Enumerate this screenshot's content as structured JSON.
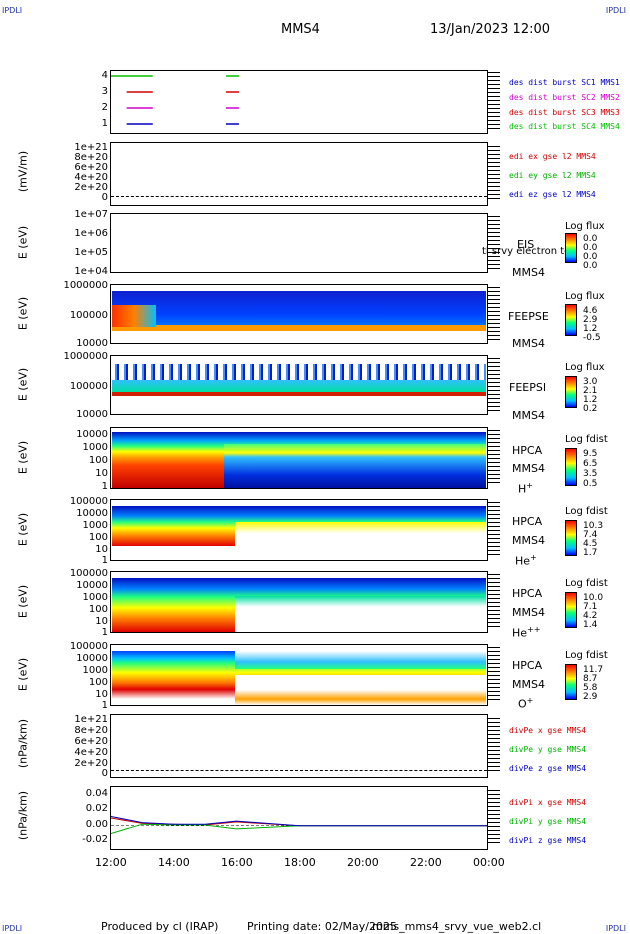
{
  "corners": {
    "label": "IPDLI"
  },
  "header": {
    "spacecraft": "MMS4",
    "datetime": "13/Jan/2023 12:00"
  },
  "panels": {
    "burst": {
      "yticks": [
        "4",
        "3",
        "2",
        "1"
      ],
      "legend": [
        {
          "text": "des dist burst SC1 MMS1",
          "color": "#0000c0"
        },
        {
          "text": "des dist burst SC2 MMS2",
          "color": "#d000d0"
        },
        {
          "text": "des dist burst SC3 MMS3",
          "color": "#d00000"
        },
        {
          "text": "des dist burst SC4 MMS4",
          "color": "#00c000"
        }
      ]
    },
    "edi": {
      "ylabel": "(mV/m)",
      "yticks": [
        "1e+21",
        "8e+20",
        "6e+20",
        "4e+20",
        "2e+20",
        "0"
      ],
      "legend": [
        {
          "text": "edi ex gse l2 MMS4",
          "color": "#d00000"
        },
        {
          "text": "edi ey gse l2 MMS4",
          "color": "#00b000"
        },
        {
          "text": "edi ez gse l2 MMS4",
          "color": "#0000c0"
        }
      ]
    },
    "eis": {
      "ylabel": "E (eV)",
      "yticks": [
        "1e+07",
        "1e+06",
        "1e+05",
        "1e+04"
      ],
      "name": "EIS",
      "overlay": "tl srvy electron to",
      "sc": "MMS4",
      "cbar_title": "Log flux",
      "cbar_ticks": [
        "0.0",
        "0.0",
        "0.0",
        "0.0"
      ]
    },
    "feepse": {
      "ylabel": "E (eV)",
      "yticks": [
        "1000000",
        "100000",
        "10000"
      ],
      "name": "FEEPSE",
      "sc": "MMS4",
      "cbar_title": "Log flux",
      "cbar_ticks": [
        "4.6",
        "2.9",
        "1.2",
        "-0.5"
      ]
    },
    "feepsi": {
      "ylabel": "E (eV)",
      "yticks": [
        "1000000",
        "100000",
        "10000"
      ],
      "name": "FEEPSI",
      "sc": "MMS4",
      "cbar_title": "Log flux",
      "cbar_ticks": [
        "3.0",
        "2.1",
        "1.2",
        "0.2"
      ]
    },
    "hpca_h": {
      "ylabel": "E (eV)",
      "yticks": [
        "10000",
        "1000",
        "100",
        "10",
        "1"
      ],
      "name": "HPCA",
      "sc": "MMS4",
      "species": "H",
      "charge": "+",
      "cbar_title": "Log fdist",
      "cbar_ticks": [
        "9.5",
        "6.5",
        "3.5",
        "0.5"
      ]
    },
    "hpca_he": {
      "ylabel": "E (eV)",
      "yticks": [
        "100000",
        "10000",
        "1000",
        "100",
        "10",
        "1"
      ],
      "name": "HPCA",
      "sc": "MMS4",
      "species": "He",
      "charge": "+",
      "cbar_title": "Log fdist",
      "cbar_ticks": [
        "10.3",
        "7.4",
        "4.5",
        "1.7"
      ]
    },
    "hpca_he2": {
      "ylabel": "E (eV)",
      "yticks": [
        "100000",
        "10000",
        "1000",
        "100",
        "10",
        "1"
      ],
      "name": "HPCA",
      "sc": "MMS4",
      "species": "He",
      "charge": "++",
      "cbar_title": "Log fdist",
      "cbar_ticks": [
        "10.0",
        "7.1",
        "4.2",
        "1.4"
      ]
    },
    "hpca_o": {
      "ylabel": "E (eV)",
      "yticks": [
        "100000",
        "10000",
        "1000",
        "100",
        "10",
        "1"
      ],
      "name": "HPCA",
      "sc": "MMS4",
      "species": "O",
      "charge": "+",
      "cbar_title": "Log fdist",
      "cbar_ticks": [
        "11.7",
        "8.7",
        "5.8",
        "2.9"
      ]
    },
    "divpe": {
      "ylabel": "(nPa/km)",
      "yticks": [
        "1e+21",
        "8e+20",
        "6e+20",
        "4e+20",
        "2e+20",
        "0"
      ],
      "legend": [
        {
          "text": "divPe x gse MMS4",
          "color": "#d00000"
        },
        {
          "text": "divPe y gse MMS4",
          "color": "#00b000"
        },
        {
          "text": "divPe z gse MMS4",
          "color": "#0000c0"
        }
      ]
    },
    "divpi": {
      "ylabel": "(nPa/km)",
      "yticks": [
        "0.04",
        "0.02",
        "0.00",
        "-0.02"
      ],
      "legend": [
        {
          "text": "divPi x gse MMS4",
          "color": "#d00000"
        },
        {
          "text": "divPi y gse MMS4",
          "color": "#00b000"
        },
        {
          "text": "divPi z gse MMS4",
          "color": "#0000c0"
        }
      ]
    }
  },
  "xaxis": {
    "ticks": [
      "12:00",
      "14:00",
      "16:00",
      "18:00",
      "20:00",
      "22:00",
      "00:00"
    ]
  },
  "footer": {
    "produced": "Produced by cl (IRAP)",
    "printing": "Printing date: 02/May/2025",
    "file": "mms_mms4_srvy_vue_web2.cl"
  },
  "chart_data": {
    "type": "line",
    "title": "MMS4",
    "x_range": [
      "12:00",
      "00:00"
    ],
    "divpi_series": [
      {
        "name": "divPi x gse MMS4",
        "x": [
          "12:00",
          "13:00",
          "14:00",
          "15:00",
          "16:00",
          "18:00",
          "20:00",
          "22:00",
          "00:00"
        ],
        "values": [
          0.01,
          0.003,
          0.002,
          0.001,
          0.005,
          0.0,
          0.0,
          0.0,
          0.0
        ]
      },
      {
        "name": "divPi y gse MMS4",
        "x": [
          "12:00",
          "13:00",
          "14:00",
          "15:00",
          "16:00",
          "18:00",
          "20:00",
          "22:00",
          "00:00"
        ],
        "values": [
          -0.01,
          0.002,
          0.001,
          0.001,
          -0.004,
          0.0,
          0.0,
          0.0,
          0.0
        ]
      },
      {
        "name": "divPi z gse MMS4",
        "x": [
          "12:00",
          "13:00",
          "14:00",
          "15:00",
          "16:00",
          "18:00",
          "20:00",
          "22:00",
          "00:00"
        ],
        "values": [
          0.012,
          0.004,
          0.002,
          0.002,
          0.006,
          0.0,
          0.0,
          0.0,
          0.0
        ]
      }
    ],
    "divpi_ylim": [
      -0.03,
      0.05
    ],
    "burst_intervals": [
      {
        "sc": 4,
        "color": "#00c000",
        "ranges": [
          [
            "12:00",
            "13:20"
          ],
          [
            "15:40",
            "16:05"
          ]
        ]
      },
      {
        "sc": 3,
        "color": "#d00000",
        "ranges": [
          [
            "12:30",
            "13:20"
          ],
          [
            "15:40",
            "16:05"
          ]
        ]
      },
      {
        "sc": 2,
        "color": "#d000d0",
        "ranges": [
          [
            "12:30",
            "13:20"
          ],
          [
            "15:40",
            "16:05"
          ]
        ]
      },
      {
        "sc": 1,
        "color": "#0000c0",
        "ranges": [
          [
            "12:30",
            "13:20"
          ],
          [
            "15:40",
            "16:05"
          ]
        ]
      }
    ]
  }
}
